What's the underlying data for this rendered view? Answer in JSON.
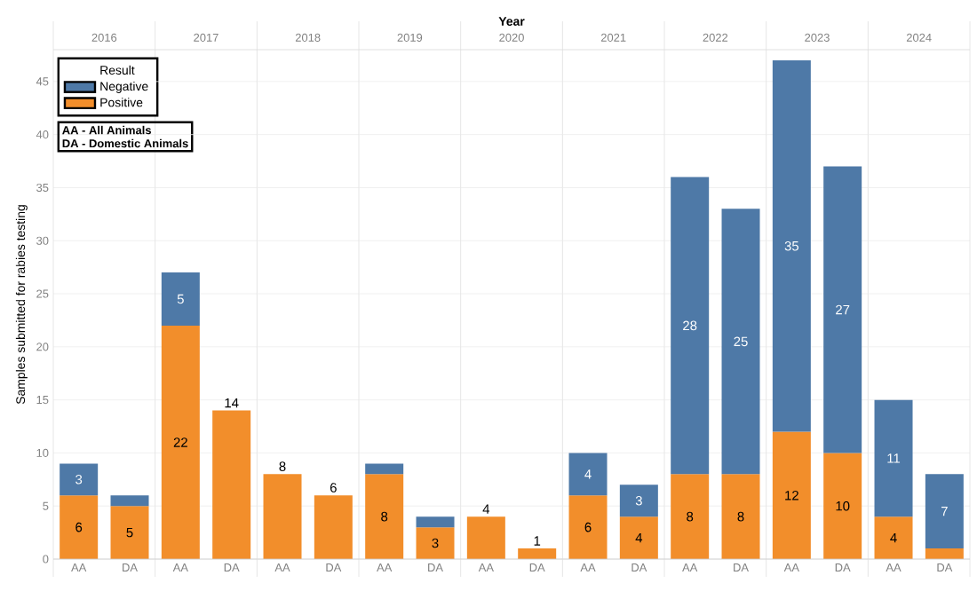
{
  "chart_data": [
    {
      "type": "bar",
      "stacked": true,
      "title": "2016",
      "categories": [
        "AA",
        "DA"
      ],
      "ylim": [
        0,
        48
      ],
      "yticks": [
        0,
        5,
        10,
        15,
        20,
        25,
        30,
        35,
        40,
        45
      ],
      "grid": "y",
      "ylabel": "Samples submitted for rabies testing",
      "legend": "top left",
      "legend_title": "Result",
      "annotations": [
        "AA - All Animals",
        "DA - Domestic Animals"
      ],
      "series": [
        {
          "name": "Positive",
          "color": "#f28e2b",
          "values": [
            6,
            5
          ],
          "value_labels": [
            "6",
            "5"
          ]
        },
        {
          "name": "Negative",
          "color": "#4e79a7",
          "values": [
            3,
            1
          ],
          "value_labels": [
            "3",
            null
          ]
        }
      ]
    },
    {
      "type": "bar",
      "stacked": true,
      "title": "2017",
      "categories": [
        "AA",
        "DA"
      ],
      "ylim": [
        0,
        48
      ],
      "yticks": [
        0,
        5,
        10,
        15,
        20,
        25,
        30,
        35,
        40,
        45
      ],
      "grid": "y",
      "tick_labels": "x",
      "series": [
        {
          "color": "#f28e2b",
          "values": [
            22,
            14
          ],
          "value_labels": [
            "22",
            "14"
          ]
        },
        {
          "color": "#4e79a7",
          "values": [
            5,
            null
          ],
          "value_labels": [
            "5",
            null
          ]
        }
      ]
    },
    {
      "type": "bar",
      "stacked": true,
      "title": "2018",
      "categories": [
        "AA",
        "DA"
      ],
      "ylim": [
        0,
        48
      ],
      "yticks": [
        0,
        5,
        10,
        15,
        20,
        25,
        30,
        35,
        40,
        45
      ],
      "grid": "y",
      "tick_labels": "x",
      "series": [
        {
          "color": "#f28e2b",
          "values": [
            8,
            6
          ],
          "value_labels": [
            "8",
            "6"
          ]
        },
        {
          "color": "#4e79a7",
          "values": [
            null,
            null
          ]
        }
      ]
    },
    {
      "type": "bar",
      "stacked": true,
      "title": "2019",
      "categories": [
        "AA",
        "DA"
      ],
      "ylim": [
        0,
        48
      ],
      "yticks": [
        0,
        5,
        10,
        15,
        20,
        25,
        30,
        35,
        40,
        45
      ],
      "grid": "y",
      "tick_labels": "x",
      "series": [
        {
          "color": "#f28e2b",
          "values": [
            8,
            3
          ],
          "value_labels": [
            "8",
            "3"
          ]
        },
        {
          "color": "#4e79a7",
          "values": [
            1,
            1
          ]
        }
      ]
    },
    {
      "type": "bar",
      "stacked": true,
      "title": "2020",
      "categories": [
        "AA",
        "DA"
      ],
      "ylim": [
        0,
        48
      ],
      "yticks": [
        0,
        5,
        10,
        15,
        20,
        25,
        30,
        35,
        40,
        45
      ],
      "grid": "y",
      "tick_labels": "x",
      "annotations": [
        "Year"
      ],
      "series": [
        {
          "color": "#f28e2b",
          "values": [
            4,
            1
          ],
          "value_labels": [
            "4",
            "1"
          ]
        },
        {
          "color": "#4e79a7",
          "values": [
            null,
            null
          ]
        }
      ]
    },
    {
      "type": "bar",
      "stacked": true,
      "title": "2021",
      "categories": [
        "AA",
        "DA"
      ],
      "ylim": [
        0,
        48
      ],
      "yticks": [
        0,
        5,
        10,
        15,
        20,
        25,
        30,
        35,
        40,
        45
      ],
      "grid": "y",
      "tick_labels": "x",
      "series": [
        {
          "color": "#f28e2b",
          "values": [
            6,
            4
          ],
          "value_labels": [
            "6",
            "4"
          ]
        },
        {
          "color": "#4e79a7",
          "values": [
            4,
            3
          ],
          "value_labels": [
            "4",
            "3"
          ]
        }
      ]
    },
    {
      "type": "bar",
      "stacked": true,
      "title": "2022",
      "categories": [
        "AA",
        "DA"
      ],
      "ylim": [
        0,
        48
      ],
      "yticks": [
        0,
        5,
        10,
        15,
        20,
        25,
        30,
        35,
        40,
        45
      ],
      "grid": "y",
      "tick_labels": "x",
      "series": [
        {
          "color": "#f28e2b",
          "values": [
            8,
            8
          ],
          "value_labels": [
            "8",
            "8"
          ]
        },
        {
          "color": "#4e79a7",
          "values": [
            28,
            25
          ],
          "value_labels": [
            "28",
            "25"
          ]
        }
      ]
    },
    {
      "type": "bar",
      "stacked": true,
      "title": "2023",
      "categories": [
        "AA",
        "DA"
      ],
      "ylim": [
        0,
        48
      ],
      "yticks": [
        0,
        5,
        10,
        15,
        20,
        25,
        30,
        35,
        40,
        45
      ],
      "grid": "y",
      "tick_labels": "x",
      "series": [
        {
          "color": "#f28e2b",
          "values": [
            12,
            10
          ],
          "value_labels": [
            "12",
            "10"
          ]
        },
        {
          "color": "#4e79a7",
          "values": [
            35,
            27
          ],
          "value_labels": [
            "35",
            "27"
          ]
        }
      ]
    },
    {
      "type": "bar",
      "stacked": true,
      "title": "2024",
      "categories": [
        "AA",
        "DA"
      ],
      "ylim": [
        0,
        48
      ],
      "yticks": [
        0,
        5,
        10,
        15,
        20,
        25,
        30,
        35,
        40,
        45
      ],
      "grid": "y",
      "tick_labels": "x",
      "series": [
        {
          "color": "#f28e2b",
          "values": [
            4,
            1
          ],
          "value_labels": [
            "4",
            null
          ]
        },
        {
          "color": "#4e79a7",
          "values": [
            11,
            7
          ],
          "value_labels": [
            "11",
            "7"
          ]
        }
      ]
    }
  ]
}
